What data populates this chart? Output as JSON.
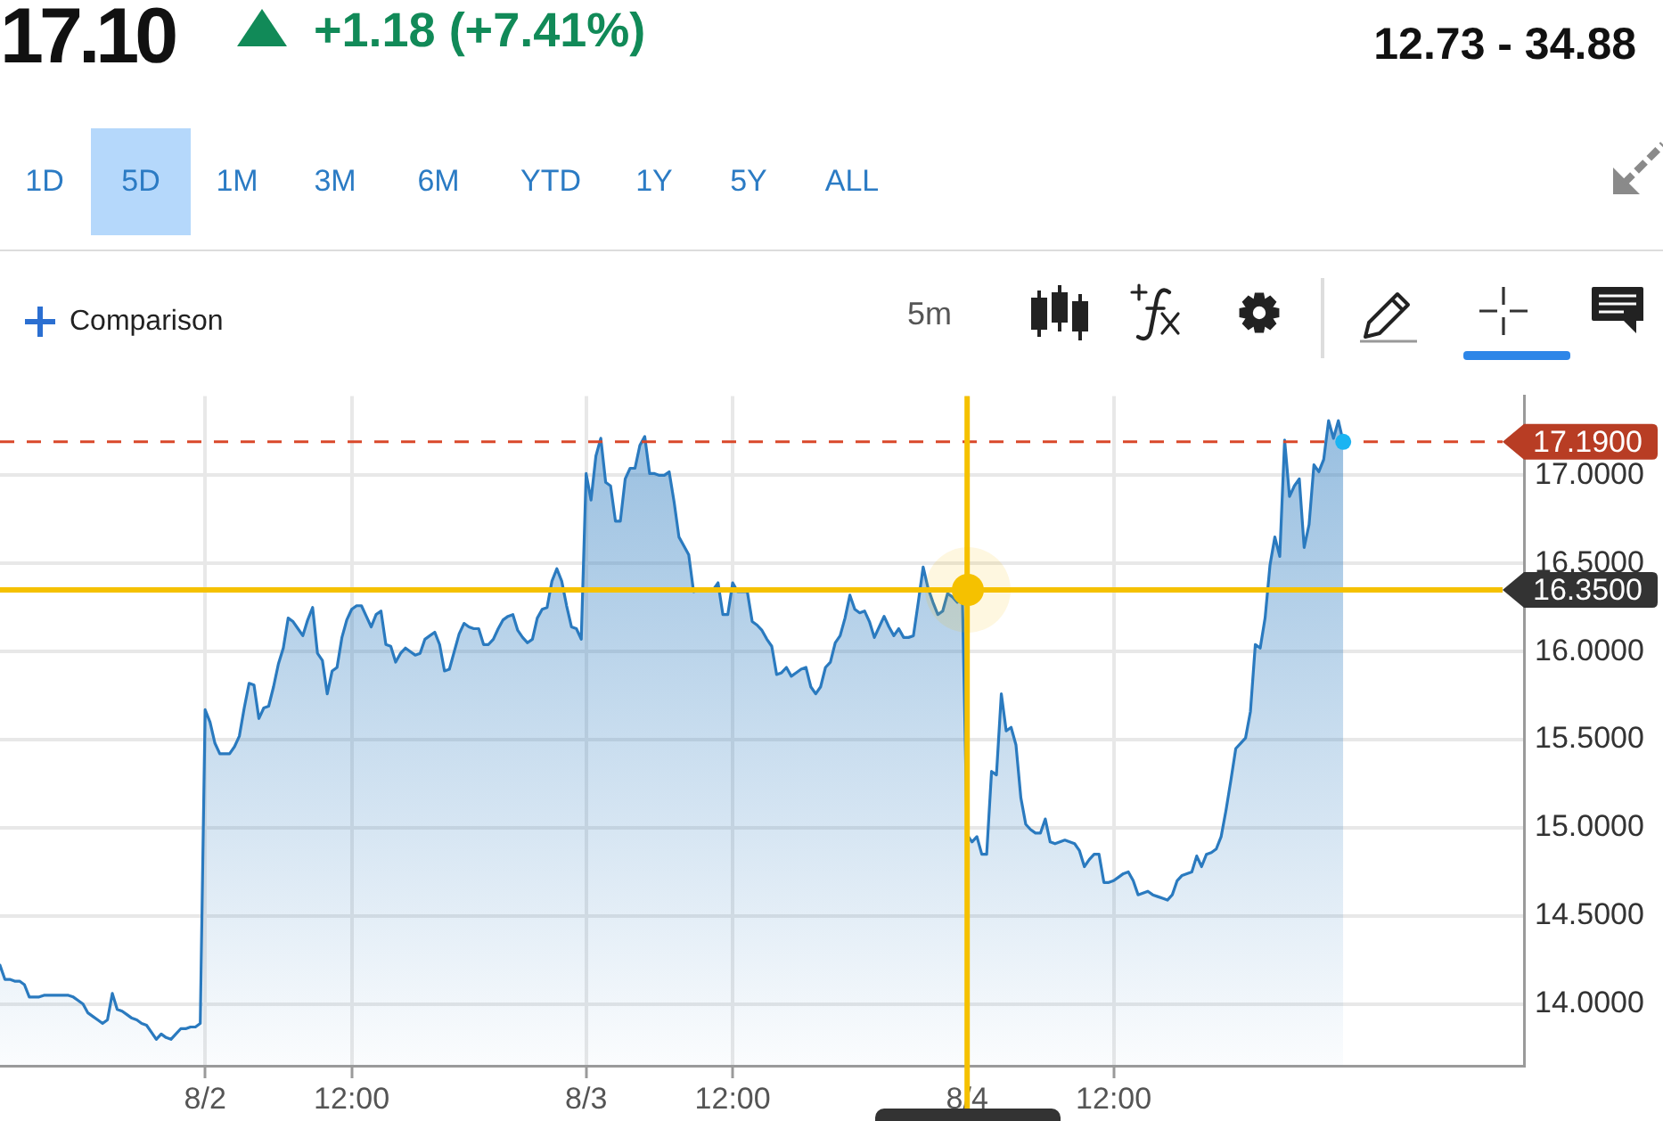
{
  "chart_data": {
    "type": "area",
    "title": "17.10",
    "subtitle": "+1.18 (+7.41%)",
    "annotations": [
      "12.73 - 34.88",
      "1D",
      "5D",
      "1M",
      "3M",
      "6M",
      "YTD",
      "1Y",
      "5Y",
      "ALL",
      "Comparison",
      "5m"
    ],
    "categories": [
      null,
      null,
      null,
      null,
      null,
      null,
      null,
      null,
      null,
      null,
      null,
      null,
      null,
      null,
      null,
      null,
      null,
      null,
      null,
      null,
      null,
      null,
      null,
      null,
      null,
      null,
      null,
      null,
      null,
      null,
      null,
      null,
      null,
      null,
      null,
      null,
      null,
      null,
      null,
      null,
      null,
      null,
      "8/2",
      null,
      null,
      null,
      null,
      null,
      null,
      null,
      null,
      null,
      null,
      null,
      null,
      null,
      null,
      null,
      null,
      null,
      null,
      null,
      null,
      null,
      null,
      null,
      null,
      null,
      null,
      null,
      null,
      null,
      "12:00",
      null,
      null,
      null,
      null,
      null,
      null,
      null,
      null,
      null,
      null,
      null,
      null,
      null,
      null,
      null,
      null,
      null,
      null,
      null,
      null,
      null,
      null,
      null,
      null,
      null,
      null,
      null,
      null,
      null,
      null,
      null,
      null,
      null,
      null,
      null,
      null,
      null,
      null,
      null,
      null,
      null,
      null,
      null,
      null,
      null,
      null,
      null,
      "8/3",
      null,
      null,
      null,
      null,
      null,
      null,
      null,
      null,
      null,
      null,
      null,
      null,
      null,
      null,
      null,
      null,
      null,
      null,
      null,
      null,
      null,
      null,
      null,
      null,
      null,
      null,
      null,
      null,
      null,
      "12:00",
      null,
      null,
      null,
      null,
      null,
      null,
      null,
      null,
      null,
      null,
      null,
      null,
      null,
      null,
      null,
      null,
      null,
      null,
      null,
      null,
      null,
      null,
      null,
      null,
      null,
      null,
      null,
      null,
      null,
      null,
      null,
      null,
      null,
      null,
      null,
      null,
      null,
      null,
      null,
      null,
      null,
      null,
      null,
      null,
      null,
      null,
      null,
      "8/4",
      null,
      null,
      null,
      null,
      null,
      null,
      null,
      null,
      null,
      null,
      null,
      null,
      null,
      null,
      null,
      null,
      null,
      null,
      null,
      null,
      null,
      null,
      null,
      null,
      null,
      null,
      null,
      null,
      null,
      "12:00",
      null,
      null,
      null,
      null,
      null,
      null,
      null,
      null,
      null,
      null,
      null,
      null,
      null,
      null,
      null,
      null,
      null,
      null,
      null,
      null,
      null,
      null,
      null,
      null,
      null,
      null,
      null,
      null,
      null,
      null,
      null,
      null,
      null,
      null,
      null,
      null,
      null,
      null,
      null,
      null,
      null,
      null,
      null,
      null,
      null,
      null,
      null,
      null,
      null,
      null,
      null,
      null,
      null,
      null,
      null,
      null,
      null,
      null,
      null,
      null,
      null,
      null,
      null,
      null,
      null,
      null,
      null,
      null,
      null,
      null,
      null,
      null,
      null,
      null,
      null,
      null,
      null,
      null,
      null,
      null,
      null,
      null,
      null,
      null
    ],
    "series": [
      {
        "color": "#2a7abf",
        "values": [
          14.22,
          14.14,
          14.14,
          14.13,
          14.13,
          14.11,
          14.04,
          14.04,
          14.04,
          14.05,
          14.05,
          14.05,
          14.05,
          14.05,
          14.05,
          14.04,
          14.02,
          14.0,
          13.95,
          13.93,
          13.91,
          13.89,
          13.91,
          14.06,
          13.97,
          13.96,
          13.94,
          13.92,
          13.91,
          13.89,
          13.88,
          13.84,
          13.8,
          13.83,
          13.81,
          13.8,
          13.83,
          13.86,
          13.86,
          13.87,
          13.87,
          13.89,
          15.67,
          15.6,
          15.48,
          15.42,
          15.42,
          15.42,
          15.46,
          15.52,
          15.68,
          15.82,
          15.81,
          15.62,
          15.68,
          15.69,
          15.8,
          15.93,
          16.02,
          16.19,
          16.17,
          16.13,
          16.09,
          16.18,
          16.25,
          15.99,
          15.95,
          15.76,
          15.89,
          15.91,
          16.08,
          16.18,
          16.24,
          16.26,
          16.26,
          16.2,
          16.14,
          16.21,
          16.23,
          16.04,
          16.03,
          15.94,
          15.99,
          16.02,
          16.0,
          15.98,
          15.99,
          16.07,
          16.09,
          16.11,
          16.04,
          15.89,
          15.9,
          16.0,
          16.1,
          16.16,
          16.14,
          16.13,
          16.13,
          16.04,
          16.04,
          16.07,
          16.13,
          16.18,
          16.2,
          16.21,
          16.12,
          16.08,
          16.05,
          16.07,
          16.19,
          16.24,
          16.25,
          16.4,
          16.47,
          16.4,
          16.26,
          16.14,
          16.13,
          16.07,
          17.01,
          16.86,
          17.11,
          17.21,
          16.96,
          16.94,
          16.74,
          16.74,
          16.98,
          17.04,
          17.04,
          17.17,
          17.22,
          17.01,
          17.01,
          17.0,
          17.0,
          17.02,
          16.85,
          16.65,
          16.6,
          16.55,
          16.34,
          16.35,
          16.35,
          16.35,
          16.35,
          16.39,
          16.21,
          16.21,
          16.39,
          16.34,
          16.34,
          16.34,
          16.17,
          16.15,
          16.12,
          16.07,
          16.03,
          15.87,
          15.88,
          15.91,
          15.86,
          15.88,
          15.9,
          15.91,
          15.8,
          15.76,
          15.8,
          15.91,
          15.94,
          16.05,
          16.09,
          16.19,
          16.32,
          16.24,
          16.22,
          16.23,
          16.17,
          16.08,
          16.14,
          16.2,
          16.14,
          16.09,
          16.13,
          16.08,
          16.08,
          16.09,
          16.28,
          16.48,
          16.36,
          16.28,
          16.21,
          16.23,
          16.33,
          16.31,
          16.28,
          16.35,
          14.96,
          14.92,
          14.95,
          14.85,
          14.85,
          15.32,
          15.3,
          15.76,
          15.55,
          15.57,
          15.47,
          15.17,
          15.02,
          14.99,
          14.97,
          14.97,
          15.05,
          14.92,
          14.91,
          14.92,
          14.93,
          14.92,
          14.91,
          14.87,
          14.78,
          14.82,
          14.85,
          14.85,
          14.69,
          14.69,
          14.7,
          14.72,
          14.74,
          14.75,
          14.7,
          14.62,
          14.63,
          14.64,
          14.62,
          14.61,
          14.6,
          14.59,
          14.62,
          14.7,
          14.73,
          14.74,
          14.75,
          14.84,
          14.78,
          14.85,
          14.86,
          14.88,
          14.95,
          15.1,
          15.27,
          15.45,
          15.48,
          15.51,
          15.66,
          16.04,
          16.02,
          16.19,
          16.49,
          16.65,
          16.54,
          17.2,
          16.88,
          16.94,
          16.98,
          16.59,
          16.72,
          17.06,
          17.02,
          17.09,
          17.31,
          17.21,
          17.31,
          17.19,
          null,
          null,
          null,
          null,
          null,
          null,
          null,
          null,
          null,
          null,
          null,
          null,
          null,
          null,
          null,
          null,
          null,
          null,
          null,
          null,
          null,
          null,
          null,
          null,
          null,
          null,
          null,
          null,
          null,
          null,
          null,
          null,
          null,
          null,
          null,
          null,
          null
        ]
      }
    ],
    "ylim": [
      13.65,
      17.45
    ],
    "yticks": [
      {
        "value": 14,
        "label": "14.0000"
      },
      {
        "value": 14.5,
        "label": "14.5000"
      },
      {
        "value": 15,
        "label": "15.0000"
      },
      {
        "value": 15.5,
        "label": "15.5000"
      },
      {
        "value": 16,
        "label": "16.0000"
      },
      {
        "value": 16.5,
        "label": "16.5000"
      },
      {
        "value": 17,
        "label": "17.0000"
      }
    ],
    "grid": true,
    "legend": false,
    "marker": "none",
    "line_style": "solid",
    "ref_lines": [
      {
        "axis": "y",
        "value": 17.19,
        "label": "17.1900",
        "color": "#d9482a",
        "line_style": "dashed"
      },
      {
        "axis": "y",
        "value": 16.35,
        "label": "16.3500",
        "color": "#f5c100",
        "line_style": "solid"
      },
      {
        "axis": "x",
        "value": "8/4",
        "color": "#f5c100",
        "line_style": "solid"
      }
    ]
  }
}
